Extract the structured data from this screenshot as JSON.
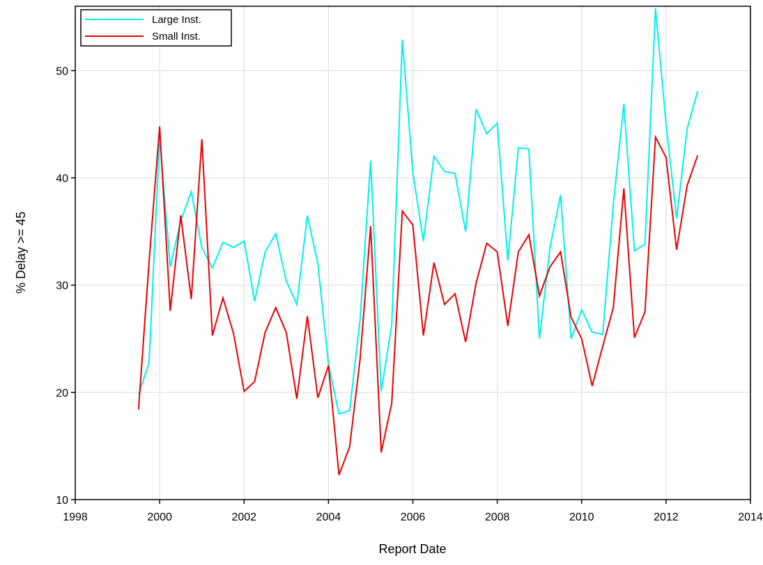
{
  "chart_data": {
    "type": "line",
    "xlabel": "Report Date",
    "ylabel": "% Delay >= 45",
    "xlim": [
      1998,
      2014
    ],
    "ylim": [
      10,
      56
    ],
    "x_ticks": [
      1998,
      2000,
      2002,
      2004,
      2006,
      2008,
      2010,
      2012,
      2014
    ],
    "y_ticks": [
      10,
      20,
      30,
      40,
      50
    ],
    "grid": true,
    "legend": "top-left",
    "x": [
      1999.5,
      1999.75,
      2000.0,
      2000.25,
      2000.5,
      2000.75,
      2001.0,
      2001.25,
      2001.5,
      2001.75,
      2002.0,
      2002.25,
      2002.5,
      2002.75,
      2003.0,
      2003.25,
      2003.5,
      2003.75,
      2004.0,
      2004.25,
      2004.5,
      2004.75,
      2005.0,
      2005.25,
      2005.5,
      2005.75,
      2006.0,
      2006.25,
      2006.5,
      2006.75,
      2007.0,
      2007.25,
      2007.5,
      2007.75,
      2008.0,
      2008.25,
      2008.5,
      2008.75,
      2009.0,
      2009.25,
      2009.5,
      2009.75,
      2010.0,
      2010.25,
      2010.5,
      2010.75,
      2011.0,
      2011.25,
      2011.5,
      2011.75,
      2012.0,
      2012.25,
      2012.5,
      2012.75
    ],
    "series": [
      {
        "name": "Large Inst.",
        "color": "#00f0f0",
        "values": [
          19.8,
          22.8,
          43.8,
          31.7,
          36.0,
          38.7,
          33.5,
          31.6,
          34.0,
          33.5,
          34.1,
          28.5,
          33.1,
          34.8,
          30.4,
          28.2,
          36.5,
          32.0,
          22.6,
          18.0,
          18.3,
          26.8,
          41.6,
          20.1,
          26.3,
          52.9,
          40.5,
          34.1,
          42.0,
          40.6,
          40.4,
          35.0,
          46.4,
          44.1,
          45.1,
          32.3,
          42.8,
          42.7,
          25.0,
          33.5,
          38.4,
          25.0,
          27.7,
          25.6,
          25.4,
          37.5,
          46.9,
          33.2,
          33.8,
          55.8,
          45.0,
          36.2,
          44.6,
          48.1
        ]
      },
      {
        "name": "Small Inst.",
        "color": "#e80000",
        "values": [
          18.4,
          32.2,
          44.8,
          27.6,
          36.5,
          28.7,
          43.6,
          25.3,
          28.8,
          25.5,
          20.1,
          21.0,
          25.6,
          27.9,
          25.6,
          19.4,
          27.1,
          19.5,
          22.5,
          12.3,
          14.9,
          23.1,
          35.5,
          14.4,
          19.0,
          36.9,
          35.6,
          25.3,
          32.1,
          28.2,
          29.2,
          24.7,
          30.2,
          33.9,
          33.1,
          26.2,
          33.1,
          34.7,
          29.0,
          31.7,
          33.1,
          27.0,
          25.0,
          20.6,
          24.3,
          27.9,
          39.0,
          25.1,
          27.5,
          43.8,
          41.9,
          33.3,
          39.3,
          42.1
        ]
      }
    ]
  }
}
